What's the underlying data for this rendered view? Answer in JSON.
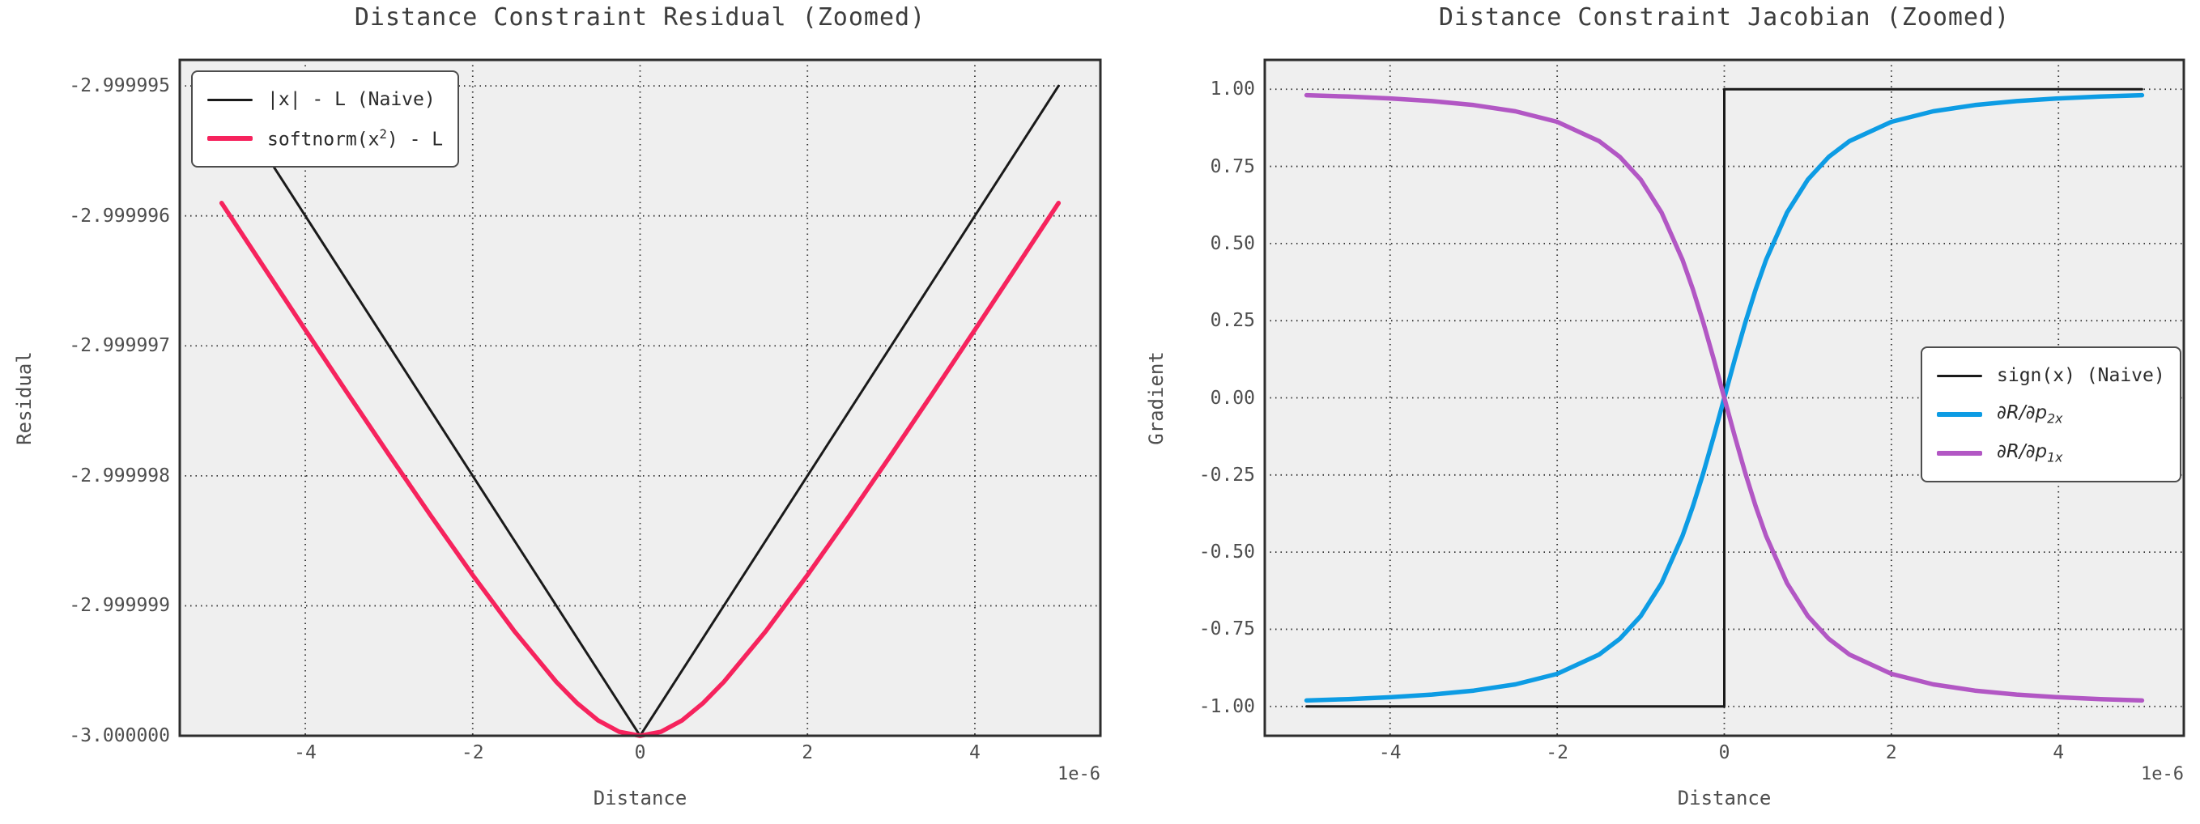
{
  "figure": {
    "background": "#ffffff",
    "plot_background": "#efefef",
    "grid_color": "#111111",
    "spine_color": "#2d2d2d",
    "title_color": "#3d3d3d",
    "tick_color": "#4e4e4e"
  },
  "chart_data": [
    {
      "type": "line",
      "title": "Distance Constraint Residual (Zoomed)",
      "xlabel": "Distance",
      "ylabel": "Residual",
      "x_offset_label": "1e-6",
      "x_unit": "1e-6",
      "grid": true,
      "legend_loc": "upper left",
      "xlim": [
        -5.5,
        5.5
      ],
      "ylim": [
        -3.0,
        -2.9999948
      ],
      "x_ticks": [
        {
          "label": "-4",
          "value": -4
        },
        {
          "label": "-2",
          "value": -2
        },
        {
          "label": "0",
          "value": 0
        },
        {
          "label": "2",
          "value": 2
        },
        {
          "label": "4",
          "value": 4
        }
      ],
      "y_ticks": [
        {
          "label": "-2.999995",
          "value": -2.999995
        },
        {
          "label": "-2.999996",
          "value": -2.999996
        },
        {
          "label": "-2.999997",
          "value": -2.999997
        },
        {
          "label": "-2.999998",
          "value": -2.999998
        },
        {
          "label": "-2.999999",
          "value": -2.999999
        },
        {
          "label": "-3.000000",
          "value": -3.0
        }
      ],
      "legend_items": [
        {
          "color": "#1a1a1a",
          "line_width": 3,
          "parts": [
            [
              "|x| - L (Naive)",
              "n"
            ]
          ]
        },
        {
          "color": "#f6235d",
          "line_width": 5.5,
          "parts": [
            [
              "softnorm(x",
              "n"
            ],
            [
              "2",
              "sup"
            ],
            [
              ") - L",
              "n"
            ]
          ]
        }
      ],
      "series": [
        {
          "name": "|x| - L (Naive)",
          "color": "#1a1a1a",
          "stroke_width": 3,
          "x": [
            -5,
            0,
            5
          ],
          "y": [
            -2.999995,
            -3.0,
            -2.999995
          ]
        },
        {
          "name": "softnorm(x^2) - L",
          "color": "#f6235d",
          "stroke_width": 5.5,
          "x": [
            -5,
            -4.5,
            -4,
            -3.5,
            -3,
            -2.5,
            -2,
            -1.5,
            -1,
            -0.75,
            -0.5,
            -0.25,
            0,
            0.25,
            0.5,
            0.75,
            1,
            1.5,
            2,
            2.5,
            3,
            3.5,
            4,
            4.5,
            5
          ],
          "y": [
            -2.999995901,
            -2.99999639,
            -2.9999968769,
            -2.99999736,
            -2.9999978377,
            -2.9999983074,
            -2.9999987639,
            -2.9999991972,
            -2.9999995858,
            -2.99999975,
            -2.999999882,
            -2.9999999692,
            -3.0,
            -2.9999999692,
            -2.999999882,
            -2.99999975,
            -2.9999995858,
            -2.9999991972,
            -2.9999987639,
            -2.9999983074,
            -2.9999978377,
            -2.99999736,
            -2.9999968769,
            -2.99999639,
            -2.999995901
          ]
        }
      ]
    },
    {
      "type": "line",
      "title": "Distance Constraint Jacobian (Zoomed)",
      "xlabel": "Distance",
      "ylabel": "Gradient",
      "x_offset_label": "1e-6",
      "x_unit": "1e-6",
      "grid": true,
      "legend_loc": "center right",
      "xlim": [
        -5.5,
        5.5
      ],
      "ylim": [
        -1.095,
        1.095
      ],
      "x_ticks": [
        {
          "label": "-4",
          "value": -4
        },
        {
          "label": "-2",
          "value": -2
        },
        {
          "label": "0",
          "value": 0
        },
        {
          "label": "2",
          "value": 2
        },
        {
          "label": "4",
          "value": 4
        }
      ],
      "y_ticks": [
        {
          "label": "1.00",
          "value": 1.0
        },
        {
          "label": "0.75",
          "value": 0.75
        },
        {
          "label": "0.50",
          "value": 0.5
        },
        {
          "label": "0.25",
          "value": 0.25
        },
        {
          "label": "0.00",
          "value": 0.0
        },
        {
          "label": "-0.25",
          "value": -0.25
        },
        {
          "label": "-0.50",
          "value": -0.5
        },
        {
          "label": "-0.75",
          "value": -0.75
        },
        {
          "label": "-1.00",
          "value": -1.0
        }
      ],
      "legend_items": [
        {
          "color": "#1a1a1a",
          "line_width": 3,
          "parts": [
            [
              "sign(x) (Naive)",
              "n"
            ]
          ]
        },
        {
          "color": "#0d9ce4",
          "line_width": 5.5,
          "parts": [
            [
              "∂R/∂p",
              "i"
            ],
            [
              "2x",
              "isub"
            ]
          ]
        },
        {
          "color": "#b257c4",
          "line_width": 5.5,
          "parts": [
            [
              "∂R/∂p",
              "i"
            ],
            [
              "1x",
              "isub"
            ]
          ]
        }
      ],
      "series": [
        {
          "name": "sign(x) (Naive)",
          "color": "#1a1a1a",
          "stroke_width": 3,
          "x": [
            -5,
            0,
            0,
            5
          ],
          "y": [
            -1,
            -1,
            1,
            1
          ]
        },
        {
          "name": "dR/dp_2x",
          "color": "#0d9ce4",
          "stroke_width": 5.5,
          "x": [
            -5,
            -4.5,
            -4,
            -3.5,
            -3,
            -2.5,
            -2,
            -1.5,
            -1.25,
            -1,
            -0.75,
            -0.5,
            -0.375,
            -0.25,
            -0.125,
            0,
            0.125,
            0.25,
            0.375,
            0.5,
            0.75,
            1,
            1.25,
            1.5,
            2,
            2.5,
            3,
            3.5,
            4,
            4.5,
            5
          ],
          "y": [
            -0.9806,
            -0.9762,
            -0.9701,
            -0.9615,
            -0.9487,
            -0.9285,
            -0.8944,
            -0.8321,
            -0.7809,
            -0.7071,
            -0.6,
            -0.4472,
            -0.351,
            -0.2425,
            -0.124,
            0,
            0.124,
            0.2425,
            0.351,
            0.4472,
            0.6,
            0.7071,
            0.7809,
            0.8321,
            0.8944,
            0.9285,
            0.9487,
            0.9615,
            0.9701,
            0.9762,
            0.9806
          ]
        },
        {
          "name": "dR/dp_1x",
          "color": "#b257c4",
          "stroke_width": 5.5,
          "x": [
            -5,
            -4.5,
            -4,
            -3.5,
            -3,
            -2.5,
            -2,
            -1.5,
            -1.25,
            -1,
            -0.75,
            -0.5,
            -0.375,
            -0.25,
            -0.125,
            0,
            0.125,
            0.25,
            0.375,
            0.5,
            0.75,
            1,
            1.25,
            1.5,
            2,
            2.5,
            3,
            3.5,
            4,
            4.5,
            5
          ],
          "y": [
            0.9806,
            0.9762,
            0.9701,
            0.9615,
            0.9487,
            0.9285,
            0.8944,
            0.8321,
            0.7809,
            0.7071,
            0.6,
            0.4472,
            0.351,
            0.2425,
            0.124,
            0,
            -0.124,
            -0.2425,
            -0.351,
            -0.4472,
            -0.6,
            -0.7071,
            -0.7809,
            -0.8321,
            -0.8944,
            -0.9285,
            -0.9487,
            -0.9615,
            -0.9701,
            -0.9762,
            -0.9806
          ]
        }
      ]
    }
  ]
}
